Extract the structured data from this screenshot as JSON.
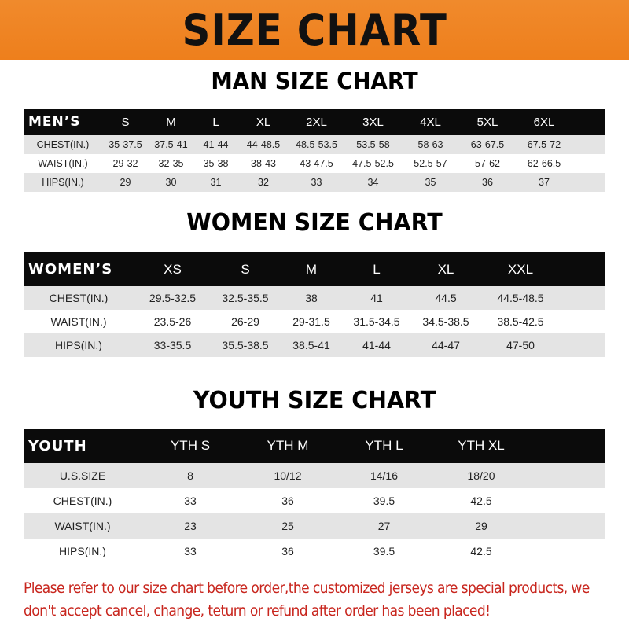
{
  "banner_title": "SIZE CHART",
  "men": {
    "title": "MAN SIZE CHART",
    "header": [
      "MEN’S",
      "S",
      "M",
      "L",
      "XL",
      "2XL",
      "3XL",
      "4XL",
      "5XL",
      "6XL"
    ],
    "rows": [
      [
        "CHEST(IN.)",
        "35-37.5",
        "37.5-41",
        "41-44",
        "44-48.5",
        "48.5-53.5",
        "53.5-58",
        "58-63",
        "63-67.5",
        "67.5-72"
      ],
      [
        "WAIST(IN.)",
        "29-32",
        "32-35",
        "35-38",
        "38-43",
        "43-47.5",
        "47.5-52.5",
        "52.5-57",
        "57-62",
        "62-66.5"
      ],
      [
        "HIPS(IN.)",
        "29",
        "30",
        "31",
        "32",
        "33",
        "34",
        "35",
        "36",
        "37"
      ]
    ]
  },
  "women": {
    "title": "WOMEN SIZE CHART",
    "header": [
      "WOMEN’S",
      "XS",
      "S",
      "M",
      "L",
      "XL",
      "XXL"
    ],
    "rows": [
      [
        "CHEST(IN.)",
        "29.5-32.5",
        "32.5-35.5",
        "38",
        "41",
        "44.5",
        "44.5-48.5"
      ],
      [
        "WAIST(IN.)",
        "23.5-26",
        "26-29",
        "29-31.5",
        "31.5-34.5",
        "34.5-38.5",
        "38.5-42.5"
      ],
      [
        "HIPS(IN.)",
        "33-35.5",
        "35.5-38.5",
        "38.5-41",
        "41-44",
        "44-47",
        "47-50"
      ]
    ]
  },
  "youth": {
    "title": "YOUTH SIZE CHART",
    "header": [
      "YOUTH",
      "YTH S",
      "YTH M",
      "YTH L",
      "YTH XL"
    ],
    "rows": [
      [
        "U.S.SIZE",
        "8",
        "10/12",
        "14/16",
        "18/20"
      ],
      [
        "CHEST(IN.)",
        "33",
        "36",
        "39.5",
        "42.5"
      ],
      [
        "WAIST(IN.)",
        "23",
        "25",
        "27",
        "29"
      ],
      [
        "HIPS(IN.)",
        "33",
        "36",
        "39.5",
        "42.5"
      ]
    ]
  },
  "notice": "Please refer to our size chart before order,the customized jerseys are special products, we don't accept cancel, change, teturn or refund after order has been placed!",
  "colors": {
    "banner": "#ef842a",
    "header_row": "#0b0b0b",
    "stripe": "#e4e4e4",
    "notice": "#c8261e"
  }
}
